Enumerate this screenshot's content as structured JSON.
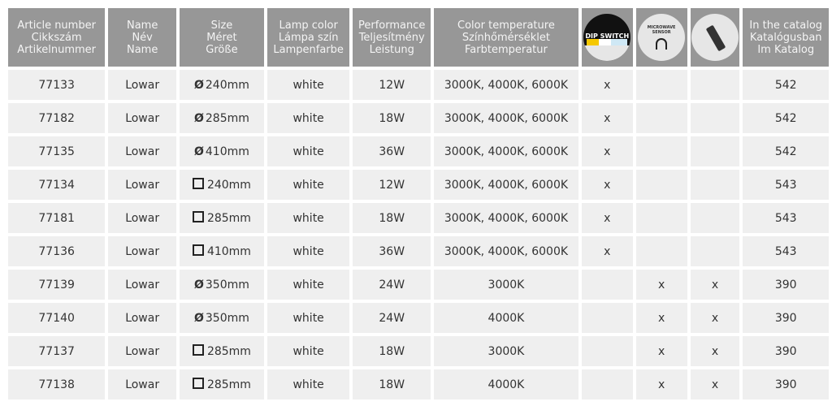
{
  "headers": {
    "article": [
      "Article number",
      "Cikkszám",
      "Artikelnummer"
    ],
    "name": [
      "Name",
      "Név",
      "Name"
    ],
    "size": [
      "Size",
      "Méret",
      "Größe"
    ],
    "lamp_color": [
      "Lamp color",
      "Lámpa szín",
      "Lampenfarbe"
    ],
    "performance": [
      "Performance",
      "Teljesítmény",
      "Leistung"
    ],
    "color_temp": [
      "Color temperature",
      "Színhőmérséklet",
      "Farbtemperatur"
    ],
    "dip_switch": {
      "icon": "dip-switch-icon",
      "label": "DIP SWITCH"
    },
    "microwave": {
      "icon": "microwave-sensor-icon",
      "label": "MICROWAVE SENSOR"
    },
    "remote": {
      "icon": "remote-control-icon"
    },
    "catalog": [
      "In the catalog",
      "Katalógusban",
      "Im Katalog"
    ]
  },
  "rows": [
    {
      "article": "77133",
      "name": "Lowar",
      "shape": "round",
      "size": "240mm",
      "color": "white",
      "power": "12W",
      "temp": "3000K, 4000K, 6000K",
      "dip": "x",
      "mw": "",
      "remote": "",
      "catalog": "542"
    },
    {
      "article": "77182",
      "name": "Lowar",
      "shape": "round",
      "size": "285mm",
      "color": "white",
      "power": "18W",
      "temp": "3000K, 4000K, 6000K",
      "dip": "x",
      "mw": "",
      "remote": "",
      "catalog": "542"
    },
    {
      "article": "77135",
      "name": "Lowar",
      "shape": "round",
      "size": "410mm",
      "color": "white",
      "power": "36W",
      "temp": "3000K, 4000K, 6000K",
      "dip": "x",
      "mw": "",
      "remote": "",
      "catalog": "542"
    },
    {
      "article": "77134",
      "name": "Lowar",
      "shape": "square",
      "size": "240mm",
      "color": "white",
      "power": "12W",
      "temp": "3000K, 4000K, 6000K",
      "dip": "x",
      "mw": "",
      "remote": "",
      "catalog": "543"
    },
    {
      "article": "77181",
      "name": "Lowar",
      "shape": "square",
      "size": "285mm",
      "color": "white",
      "power": "18W",
      "temp": "3000K, 4000K, 6000K",
      "dip": "x",
      "mw": "",
      "remote": "",
      "catalog": "543"
    },
    {
      "article": "77136",
      "name": "Lowar",
      "shape": "square",
      "size": "410mm",
      "color": "white",
      "power": "36W",
      "temp": "3000K, 4000K, 6000K",
      "dip": "x",
      "mw": "",
      "remote": "",
      "catalog": "543"
    },
    {
      "article": "77139",
      "name": "Lowar",
      "shape": "round",
      "size": "350mm",
      "color": "white",
      "power": "24W",
      "temp": "3000K",
      "dip": "",
      "mw": "x",
      "remote": "x",
      "catalog": "390"
    },
    {
      "article": "77140",
      "name": "Lowar",
      "shape": "round",
      "size": "350mm",
      "color": "white",
      "power": "24W",
      "temp": "4000K",
      "dip": "",
      "mw": "x",
      "remote": "x",
      "catalog": "390"
    },
    {
      "article": "77137",
      "name": "Lowar",
      "shape": "square",
      "size": "285mm",
      "color": "white",
      "power": "18W",
      "temp": "3000K",
      "dip": "",
      "mw": "x",
      "remote": "x",
      "catalog": "390"
    },
    {
      "article": "77138",
      "name": "Lowar",
      "shape": "square",
      "size": "285mm",
      "color": "white",
      "power": "18W",
      "temp": "4000K",
      "dip": "",
      "mw": "x",
      "remote": "x",
      "catalog": "390"
    }
  ],
  "colors": {
    "header_bg": "#979797",
    "cell_bg": "#efefef"
  }
}
